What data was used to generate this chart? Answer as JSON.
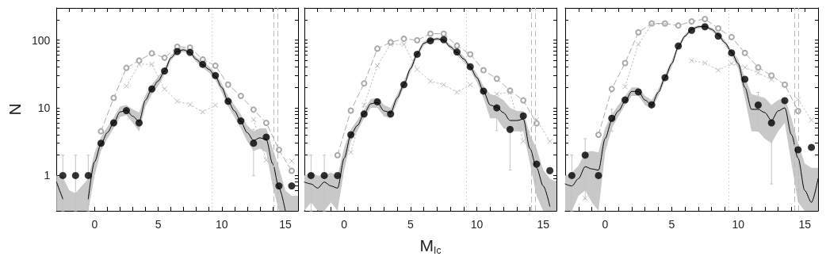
{
  "chart_data": [
    {
      "type": "line",
      "ylabel": "N",
      "x": [
        -2.5,
        -1.5,
        -0.5,
        0.5,
        1.5,
        2.5,
        3.5,
        4.5,
        5.5,
        6.5,
        7.5,
        8.5,
        9.5,
        10.5,
        11.5,
        12.5,
        13.5,
        14.5,
        15.5
      ],
      "xlim": [
        -3,
        16
      ],
      "xticks": [
        {
          "value": -2,
          "label": null
        },
        {
          "value": -1,
          "label": null
        },
        0,
        {
          "value": 1,
          "label": null
        },
        {
          "value": 2,
          "label": null
        },
        {
          "value": 3,
          "label": null
        },
        {
          "value": 4,
          "label": null
        },
        5,
        {
          "value": 6,
          "label": null
        },
        {
          "value": 7,
          "label": null
        },
        {
          "value": 8,
          "label": null
        },
        {
          "value": 9,
          "label": null
        },
        10,
        {
          "value": 11,
          "label": null
        },
        {
          "value": 12,
          "label": null
        },
        {
          "value": 13,
          "label": null
        },
        {
          "value": 14,
          "label": null
        },
        15
      ],
      "ylim": [
        0.3,
        300
      ],
      "yticks": [
        {
          "value": 0.4,
          "label": null
        },
        {
          "value": 0.5,
          "label": null
        },
        {
          "value": 0.6,
          "label": null
        },
        {
          "value": 0.7,
          "label": null
        },
        {
          "value": 0.8,
          "label": null
        },
        {
          "value": 0.9,
          "label": null
        },
        1,
        {
          "value": 2,
          "label": null
        },
        {
          "value": 3,
          "label": null
        },
        {
          "value": 4,
          "label": null
        },
        {
          "value": 5,
          "label": null
        },
        {
          "value": 6,
          "label": null
        },
        {
          "value": 7,
          "label": null
        },
        {
          "value": 8,
          "label": null
        },
        {
          "value": 9,
          "label": null
        },
        10,
        {
          "value": 20,
          "label": null
        },
        {
          "value": 30,
          "label": null
        },
        {
          "value": 40,
          "label": null
        },
        {
          "value": 50,
          "label": null
        },
        {
          "value": 60,
          "label": null
        },
        {
          "value": 70,
          "label": null
        },
        {
          "value": 80,
          "label": null
        },
        {
          "value": 90,
          "label": null
        },
        100,
        {
          "value": 200,
          "label": null
        }
      ],
      "log": true,
      "ref_lines": [
        {
          "axis": "x",
          "value": 9.2,
          "line_style": "dotted",
          "color": "#cccccc"
        },
        {
          "axis": "x",
          "value": 14.1,
          "line_style": "dashed",
          "color": "#bbbbbb"
        },
        {
          "axis": "x",
          "value": 14.4,
          "line_style": "dashed",
          "color": "#bbbbbb"
        }
      ],
      "series": [
        {
          "type": "line",
          "color": "#000000",
          "marker": "none",
          "line_style": "solid",
          "x": [
            -3,
            -2.5,
            -2,
            -1.5,
            -1,
            -0.5,
            0,
            0.5,
            1,
            1.5,
            2,
            2.5,
            3,
            3.5,
            4,
            4.5,
            5,
            5.5,
            6,
            6.5,
            7,
            7.5,
            8,
            8.5,
            9,
            9.5,
            10,
            10.5,
            11,
            11.5,
            12,
            12.5,
            13,
            13.5,
            14,
            14.5,
            15,
            15.5,
            16
          ],
          "values": [
            0.8,
            0.45,
            null,
            null,
            null,
            0.45,
            1.6,
            2.9,
            4.3,
            6,
            8.7,
            9.2,
            7.5,
            6.3,
            13,
            19,
            25,
            35,
            55,
            68,
            72,
            66,
            52,
            43,
            37,
            29,
            20,
            12.5,
            9,
            6.3,
            4.3,
            3.3,
            3.6,
            3.4,
            1.5,
            0.65,
            0.3,
            null,
            null
          ],
          "lower": [
            0.3,
            0.3,
            0.3,
            0.3,
            0.3,
            0.3,
            1.0,
            2.3,
            3.5,
            5,
            7.3,
            7.8,
            6,
            4.5,
            10.5,
            16,
            21,
            31,
            50,
            63,
            67,
            61,
            48,
            39,
            33,
            26,
            17,
            10.5,
            7.3,
            5,
            3.2,
            2.3,
            2.5,
            2.2,
            0.7,
            0.3,
            0.3,
            0.3,
            0.3
          ],
          "upper": [
            1.0,
            0.95,
            0.6,
            0.55,
            0.7,
            0.9,
            2.2,
            3.7,
            5.2,
            7.2,
            10.5,
            11,
            9.5,
            8.5,
            15.5,
            22,
            29,
            39,
            60,
            74,
            77,
            71,
            56,
            47,
            41,
            33,
            23,
            15,
            11,
            8,
            5.5,
            4.5,
            5,
            5,
            2.5,
            1.3,
            0.6,
            0.5,
            0.5
          ]
        },
        {
          "type": "line",
          "color": "#aaaaaa",
          "marker": "circle",
          "line_style": "dashed",
          "values": [
            null,
            null,
            null,
            4.5,
            14,
            39,
            50,
            64,
            55,
            80,
            78,
            52,
            42,
            22,
            15,
            9.4,
            6.0,
            2.4,
            1.17
          ]
        },
        {
          "type": "line",
          "color": "#bbbbbb",
          "marker": "cross",
          "line_style": "dotted",
          "values": [
            null,
            null,
            null,
            null,
            null,
            21,
            44,
            44,
            19,
            12.5,
            11.2,
            8.7,
            11,
            null,
            null,
            6.7,
            1.69,
            null,
            1.64
          ]
        },
        {
          "type": "scatter",
          "color": "#000000",
          "marker": "circle",
          "values": [
            1,
            1,
            1,
            3.0,
            6.0,
            9.1,
            6.0,
            19,
            35,
            68,
            66,
            44,
            30,
            12.5,
            6.4,
            3.0,
            3.7,
            0.7,
            0.7
          ],
          "errors": [
            [
              0.3,
              2
            ],
            [
              0.3,
              2
            ],
            [
              0.3,
              2
            ],
            null,
            null,
            null,
            null,
            null,
            null,
            null,
            null,
            null,
            null,
            null,
            null,
            [
              1.0,
              4.8
            ],
            null,
            null,
            null
          ]
        }
      ]
    },
    {
      "type": "line",
      "xlabel": "M$_{Ic}$",
      "tick_labels": "x",
      "x": [
        -2.5,
        -1.5,
        -0.5,
        0.5,
        1.5,
        2.5,
        3.5,
        4.5,
        5.5,
        6.5,
        7.5,
        8.5,
        9.5,
        10.5,
        11.5,
        12.5,
        13.5,
        14.5,
        15.5
      ],
      "xlim": [
        -3,
        16
      ],
      "xticks": [
        {
          "value": -2,
          "label": null
        },
        {
          "value": -1,
          "label": null
        },
        0,
        {
          "value": 1,
          "label": null
        },
        {
          "value": 2,
          "label": null
        },
        {
          "value": 3,
          "label": null
        },
        {
          "value": 4,
          "label": null
        },
        5,
        {
          "value": 6,
          "label": null
        },
        {
          "value": 7,
          "label": null
        },
        {
          "value": 8,
          "label": null
        },
        {
          "value": 9,
          "label": null
        },
        10,
        {
          "value": 11,
          "label": null
        },
        {
          "value": 12,
          "label": null
        },
        {
          "value": 13,
          "label": null
        },
        {
          "value": 14,
          "label": null
        },
        15
      ],
      "ylim": [
        0.3,
        300
      ],
      "yticks": [
        {
          "value": 0.4,
          "label": null
        },
        {
          "value": 0.5,
          "label": null
        },
        {
          "value": 0.6,
          "label": null
        },
        {
          "value": 0.7,
          "label": null
        },
        {
          "value": 0.8,
          "label": null
        },
        {
          "value": 0.9,
          "label": null
        },
        {
          "value": 1,
          "label": null
        },
        {
          "value": 2,
          "label": null
        },
        {
          "value": 3,
          "label": null
        },
        {
          "value": 4,
          "label": null
        },
        {
          "value": 5,
          "label": null
        },
        {
          "value": 6,
          "label": null
        },
        {
          "value": 7,
          "label": null
        },
        {
          "value": 8,
          "label": null
        },
        {
          "value": 9,
          "label": null
        },
        {
          "value": 10,
          "label": null
        },
        {
          "value": 20,
          "label": null
        },
        {
          "value": 30,
          "label": null
        },
        {
          "value": 40,
          "label": null
        },
        {
          "value": 50,
          "label": null
        },
        {
          "value": 60,
          "label": null
        },
        {
          "value": 70,
          "label": null
        },
        {
          "value": 80,
          "label": null
        },
        {
          "value": 90,
          "label": null
        },
        {
          "value": 100,
          "label": null
        },
        {
          "value": 200,
          "label": null
        }
      ],
      "log": true,
      "ref_lines": [
        {
          "axis": "x",
          "value": 9.2,
          "line_style": "dotted",
          "color": "#cccccc"
        },
        {
          "axis": "x",
          "value": 14.1,
          "line_style": "dashed",
          "color": "#bbbbbb"
        },
        {
          "axis": "x",
          "value": 14.4,
          "line_style": "dashed",
          "color": "#bbbbbb"
        }
      ],
      "series": [
        {
          "type": "line",
          "color": "#000000",
          "marker": "none",
          "line_style": "solid",
          "x": [
            -3,
            -2.5,
            -2,
            -1.5,
            -1,
            -0.5,
            0,
            0.5,
            1,
            1.5,
            2,
            2.5,
            3,
            3.5,
            4,
            4.5,
            5,
            5.5,
            6,
            6.5,
            7,
            7.5,
            8,
            8.5,
            9,
            9.5,
            10,
            10.5,
            11,
            11.5,
            12,
            12.5,
            13,
            13.5,
            14,
            14.5,
            15,
            15.5,
            16
          ],
          "values": [
            0.8,
            0.75,
            0.65,
            0.8,
            0.7,
            0.65,
            1.8,
            4.0,
            5.5,
            8.2,
            11.5,
            12,
            9,
            8.5,
            14,
            22,
            38,
            63,
            90,
            100,
            105,
            100,
            80,
            66,
            53,
            40,
            28,
            17.5,
            11,
            10.2,
            8.5,
            6.5,
            6.5,
            6.8,
            2.5,
            1.3,
            0.7,
            0.35,
            null
          ],
          "lower": [
            0.3,
            0.4,
            0.3,
            0.3,
            0.4,
            0.3,
            1.2,
            3.2,
            4.6,
            7,
            10,
            10,
            7.5,
            7,
            12,
            20,
            34,
            57,
            84,
            94,
            99,
            94,
            74,
            60,
            48,
            36,
            24,
            14,
            7,
            7,
            5,
            4.5,
            4.5,
            4.5,
            1.5,
            0.5,
            0.3,
            0.3,
            0.3
          ],
          "upper": [
            1.0,
            1.1,
            1.0,
            1.0,
            1.1,
            1.0,
            2.6,
            4.8,
            6.6,
            9.5,
            13.5,
            14,
            11,
            10,
            16,
            25,
            42,
            68,
            96,
            106,
            110,
            106,
            86,
            72,
            58,
            44,
            32,
            21,
            16,
            15,
            13,
            10,
            9,
            9,
            4,
            2.5,
            1.2,
            0.9,
            0.8
          ]
        },
        {
          "type": "line",
          "color": "#aaaaaa",
          "marker": "circle",
          "line_style": "dashed",
          "values": [
            null,
            null,
            2.0,
            9.1,
            23,
            75,
            93,
            105,
            100,
            125,
            125,
            83,
            62,
            36,
            27,
            18,
            12.9,
            5.9,
            null
          ]
        },
        {
          "type": "line",
          "color": "#bbbbbb",
          "marker": "cross",
          "line_style": "dotted",
          "values": [
            null,
            null,
            null,
            2.2,
            11,
            42,
            87,
            87,
            37,
            24.7,
            22,
            17,
            22,
            null,
            16,
            17,
            3.2,
            6.7,
            3.2
          ]
        },
        {
          "type": "scatter",
          "color": "#000000",
          "marker": "circle",
          "values": [
            1,
            1,
            1,
            4.0,
            8.1,
            12.3,
            8.1,
            22,
            62,
            98,
            102,
            67,
            40.5,
            17.7,
            10,
            4.8,
            7.6,
            1.47,
            1.18
          ],
          "errors": [
            [
              0.3,
              2
            ],
            [
              0.3,
              2
            ],
            null,
            null,
            null,
            null,
            null,
            null,
            null,
            null,
            null,
            null,
            null,
            null,
            [
              4.6,
              10
            ],
            [
              1.2,
              4.8
            ],
            null,
            null,
            null
          ]
        }
      ]
    },
    {
      "type": "line",
      "tick_labels": "x",
      "x": [
        -2.5,
        -1.5,
        -0.5,
        0.5,
        1.5,
        2.5,
        3.5,
        4.5,
        5.5,
        6.5,
        7.5,
        8.5,
        9.5,
        10.5,
        11.5,
        12.5,
        13.5,
        14.5,
        15.5
      ],
      "xlim": [
        -3,
        16
      ],
      "xticks": [
        {
          "value": -2,
          "label": null
        },
        {
          "value": -1,
          "label": null
        },
        0,
        {
          "value": 1,
          "label": null
        },
        {
          "value": 2,
          "label": null
        },
        {
          "value": 3,
          "label": null
        },
        {
          "value": 4,
          "label": null
        },
        5,
        {
          "value": 6,
          "label": null
        },
        {
          "value": 7,
          "label": null
        },
        {
          "value": 8,
          "label": null
        },
        {
          "value": 9,
          "label": null
        },
        10,
        {
          "value": 11,
          "label": null
        },
        {
          "value": 12,
          "label": null
        },
        {
          "value": 13,
          "label": null
        },
        {
          "value": 14,
          "label": null
        },
        15
      ],
      "ylim": [
        0.3,
        300
      ],
      "yticks": [
        {
          "value": 0.4,
          "label": null
        },
        {
          "value": 0.5,
          "label": null
        },
        {
          "value": 0.6,
          "label": null
        },
        {
          "value": 0.7,
          "label": null
        },
        {
          "value": 0.8,
          "label": null
        },
        {
          "value": 0.9,
          "label": null
        },
        {
          "value": 1,
          "label": null
        },
        {
          "value": 2,
          "label": null
        },
        {
          "value": 3,
          "label": null
        },
        {
          "value": 4,
          "label": null
        },
        {
          "value": 5,
          "label": null
        },
        {
          "value": 6,
          "label": null
        },
        {
          "value": 7,
          "label": null
        },
        {
          "value": 8,
          "label": null
        },
        {
          "value": 9,
          "label": null
        },
        {
          "value": 10,
          "label": null
        },
        {
          "value": 20,
          "label": null
        },
        {
          "value": 30,
          "label": null
        },
        {
          "value": 40,
          "label": null
        },
        {
          "value": 50,
          "label": null
        },
        {
          "value": 60,
          "label": null
        },
        {
          "value": 70,
          "label": null
        },
        {
          "value": 80,
          "label": null
        },
        {
          "value": 90,
          "label": null
        },
        {
          "value": 100,
          "label": null
        },
        {
          "value": 200,
          "label": null
        }
      ],
      "log": true,
      "ref_lines": [
        {
          "axis": "x",
          "value": 9.3,
          "line_style": "dotted",
          "color": "#cccccc"
        },
        {
          "axis": "x",
          "value": 14.2,
          "line_style": "dashed",
          "color": "#bbbbbb"
        },
        {
          "axis": "x",
          "value": 14.5,
          "line_style": "dashed",
          "color": "#bbbbbb"
        }
      ],
      "series": [
        {
          "type": "line",
          "color": "#000000",
          "marker": "none",
          "line_style": "solid",
          "x": [
            -3,
            -2.5,
            -2,
            -1.5,
            -1,
            -0.5,
            0,
            0.5,
            1,
            1.5,
            2,
            2.5,
            3,
            3.5,
            4,
            4.5,
            5,
            5.5,
            6,
            6.5,
            7,
            7.5,
            8,
            8.5,
            9,
            9.5,
            10,
            10.5,
            11,
            11.5,
            12,
            12.5,
            13,
            13.5,
            14,
            14.5,
            15,
            15.5,
            16
          ],
          "values": [
            0.75,
            0.7,
            0.9,
            1.35,
            1.25,
            1.2,
            3.5,
            6.5,
            9,
            12.5,
            17.5,
            17.5,
            13,
            11,
            17,
            28,
            45,
            80,
            115,
            145,
            158,
            160,
            145,
            120,
            92,
            66,
            45,
            20,
            9.5,
            9.5,
            8.5,
            6.5,
            9,
            10,
            4,
            1.8,
            0.6,
            0.4,
            0.9
          ],
          "lower": [
            0.3,
            0.3,
            0.5,
            0.6,
            0.4,
            0.3,
            2.2,
            5,
            7.5,
            11,
            15,
            15,
            11,
            9.5,
            15,
            25,
            40,
            74,
            108,
            137,
            150,
            152,
            137,
            112,
            85,
            60,
            38,
            14,
            4.5,
            4.5,
            3.5,
            3,
            4.5,
            6,
            1.5,
            0.4,
            0.3,
            0.3,
            0.3
          ],
          "upper": [
            1.0,
            1.1,
            1.4,
            2.2,
            2.3,
            2.2,
            5,
            8,
            11,
            15,
            20,
            20,
            15,
            13,
            19,
            31,
            50,
            87,
            122,
            153,
            166,
            168,
            153,
            128,
            99,
            72,
            52,
            28,
            16,
            15,
            14,
            11,
            13,
            14,
            7,
            3,
            1.5,
            1.3,
            1.3
          ]
        },
        {
          "type": "line",
          "color": "#aaaaaa",
          "marker": "circle",
          "line_style": "dashed",
          "values": [
            null,
            null,
            4.0,
            19,
            46,
            131,
            177,
            177,
            165,
            190,
            206,
            150,
            111,
            65,
            39.5,
            30,
            22,
            9.0,
            null
          ]
        },
        {
          "type": "line",
          "color": "#bbbbbb",
          "marker": "cross",
          "line_style": "dotted",
          "values": [
            null,
            0.46,
            null,
            null,
            20.6,
            87,
            173,
            173,
            null,
            50,
            46,
            36,
            45,
            39.5,
            33,
            26,
            null,
            13.3,
            6.6
          ]
        },
        {
          "type": "scatter",
          "color": "#000000",
          "marker": "circle",
          "values": [
            1,
            2.0,
            1,
            7.0,
            13.1,
            17.2,
            11.1,
            28,
            82,
            140,
            158,
            115,
            65,
            26.5,
            11,
            6.0,
            12.8,
            2.4,
            2.6
          ],
          "errors": [
            [
              0.3,
              2
            ],
            [
              0.45,
              3.5
            ],
            null,
            [
              4.5,
              9.5
            ],
            null,
            null,
            null,
            null,
            null,
            null,
            null,
            null,
            null,
            null,
            [
              4.5,
              17
            ],
            [
              0.75,
              6
            ],
            null,
            null,
            null
          ]
        }
      ]
    }
  ]
}
